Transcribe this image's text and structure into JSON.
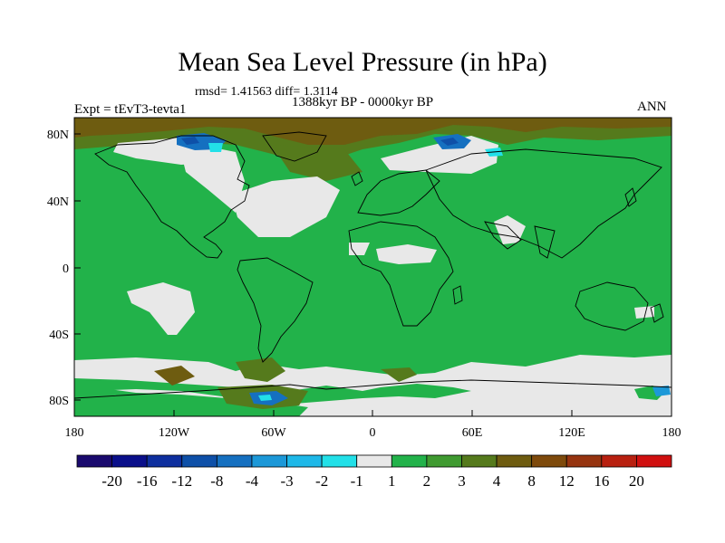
{
  "title": "Mean Sea Level Pressure (in hPa)",
  "stats": "rmsd= 1.41563 diff= 1.3114",
  "period": "1388kyr BP - 0000kyr BP",
  "experiment": "Expt = tEvT3-tevta1",
  "season": "ANN",
  "lat_labels": [
    "80N",
    "40N",
    "0",
    "40S",
    "80S"
  ],
  "lon_labels": [
    "180",
    "120W",
    "60W",
    "0",
    "60E",
    "120E",
    "180"
  ],
  "colorbar": {
    "labels": [
      "-20",
      "-16",
      "-12",
      "-8",
      "-4",
      "-3",
      "-2",
      "-1",
      "1",
      "2",
      "3",
      "4",
      "8",
      "12",
      "16",
      "20"
    ],
    "colors": [
      "#1a0a6e",
      "#0a0f8a",
      "#0e2f9e",
      "#0e50a8",
      "#1570c0",
      "#1c98d8",
      "#1eb8e8",
      "#22e0e8",
      "#e8e8e8",
      "#22b24a",
      "#3f9a30",
      "#557a1c",
      "#6e5c10",
      "#7e4a0c",
      "#963410",
      "#b82010",
      "#d01010"
    ]
  },
  "colors": {
    "land_fill": "#22b24a",
    "neutral": "#e8e8e8",
    "high_brown": "#6e5c10",
    "mid_olive": "#557a1c",
    "low_blue": "#1570c0",
    "low_cyan": "#22e0e8"
  }
}
